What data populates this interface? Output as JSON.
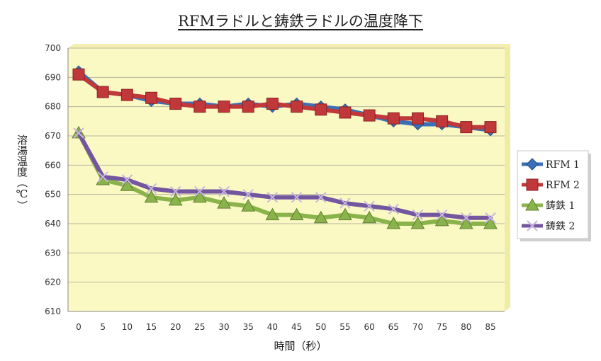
{
  "chart_data": {
    "type": "line",
    "title": "RFMラドルと鋳鉄ラドルの温度降下",
    "xlabel": "時間（秒）",
    "ylabel": "溶湯温度（℃）",
    "x": [
      0,
      5,
      10,
      15,
      20,
      25,
      30,
      35,
      40,
      45,
      50,
      55,
      60,
      65,
      70,
      75,
      80,
      85
    ],
    "ylim": [
      610,
      700
    ],
    "yticks": [
      610,
      620,
      630,
      640,
      650,
      660,
      670,
      680,
      690,
      700
    ],
    "grid": true,
    "plot_background": "#fbf9c3",
    "legend_position": "right",
    "series": [
      {
        "name": "RFM 1",
        "color": "#3b6fb6",
        "marker": "diamond",
        "values": [
          692,
          685,
          684,
          682,
          681,
          681,
          680,
          681,
          680,
          681,
          680,
          679,
          677,
          675,
          674,
          674,
          673,
          672
        ]
      },
      {
        "name": "RFM 2",
        "color": "#c0383a",
        "marker": "square",
        "values": [
          691,
          685,
          684,
          683,
          681,
          680,
          680,
          680,
          681,
          680,
          679,
          678,
          677,
          676,
          676,
          675,
          673,
          673
        ]
      },
      {
        "name": "鋳鉄 1",
        "color": "#8ab44b",
        "marker": "triangle",
        "values": [
          671,
          655,
          653,
          649,
          648,
          649,
          647,
          646,
          643,
          643,
          642,
          643,
          642,
          640,
          640,
          641,
          640,
          640
        ]
      },
      {
        "name": "鋳鉄 2",
        "color": "#7455a0",
        "marker": "x",
        "values": [
          671,
          656,
          655,
          652,
          651,
          651,
          651,
          650,
          649,
          649,
          649,
          647,
          646,
          645,
          643,
          643,
          642,
          642
        ]
      }
    ]
  }
}
